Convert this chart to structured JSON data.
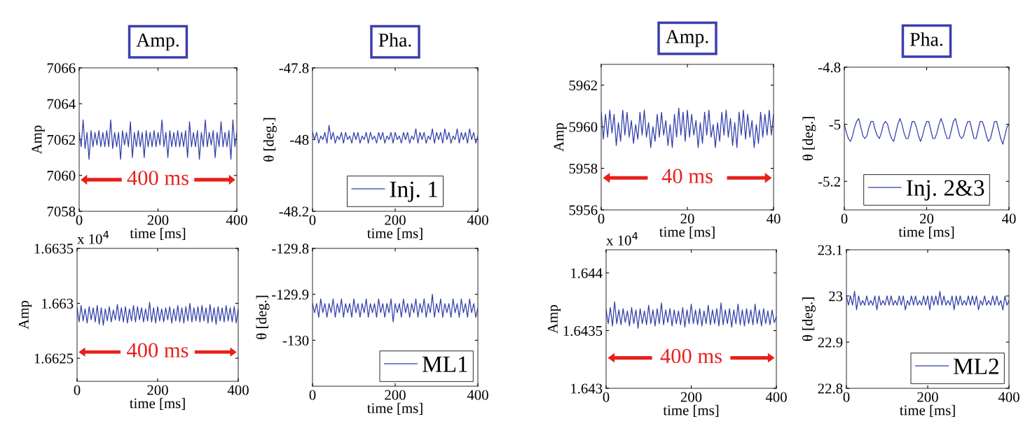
{
  "chart_data": [
    {
      "type": "line",
      "title": "Amp.",
      "xlabel": "time [ms]",
      "ylabel": "Amp",
      "xlim": [
        0,
        400
      ],
      "xticks": [
        0,
        200,
        400
      ],
      "ylim": [
        7058,
        7066
      ],
      "yticks": [
        7058,
        7060,
        7062,
        7064,
        7066
      ],
      "annotations": [
        "400 ms"
      ],
      "grid": false,
      "legend": false,
      "x": [
        0,
        5,
        10,
        15,
        20,
        25,
        30,
        35,
        40,
        45,
        50,
        55,
        60,
        65,
        70,
        75,
        80,
        85,
        90,
        95,
        100,
        105,
        110,
        115,
        120,
        125,
        130,
        135,
        140,
        145,
        150,
        155,
        160,
        165,
        170,
        175,
        180,
        185,
        190,
        195,
        200,
        205,
        210,
        215,
        220,
        225,
        230,
        235,
        240,
        245,
        250,
        255,
        260,
        265,
        270,
        275,
        280,
        285,
        290,
        295,
        300,
        305,
        310,
        315,
        320,
        325,
        330,
        335,
        340,
        345,
        350,
        355,
        360,
        365,
        370,
        375,
        380,
        385,
        390,
        395,
        400
      ],
      "series": [
        {
          "color": "#3240aa",
          "values": [
            7062.4,
            7061.6,
            7063.1,
            7061.5,
            7062.4,
            7060.9,
            7062.5,
            7061.6,
            7062.4,
            7061.7,
            7062.5,
            7061.6,
            7062.4,
            7061.6,
            7062.5,
            7061.6,
            7063.1,
            7061.5,
            7062.4,
            7061.6,
            7062.4,
            7060.9,
            7062.5,
            7061.7,
            7062.4,
            7061.6,
            7063.0,
            7061.0,
            7062.4,
            7061.6,
            7062.5,
            7061.6,
            7062.4,
            7061.0,
            7062.5,
            7061.6,
            7062.4,
            7061.6,
            7062.5,
            7061.6,
            7062.4,
            7061.7,
            7063.1,
            7061.6,
            7062.4,
            7061.0,
            7062.5,
            7061.6,
            7062.4,
            7061.6,
            7062.5,
            7061.6,
            7062.4,
            7061.6,
            7062.5,
            7061.0,
            7063.0,
            7061.6,
            7062.4,
            7061.6,
            7062.5,
            7060.9,
            7062.4,
            7061.6,
            7063.1,
            7061.6,
            7062.4,
            7061.7,
            7062.5,
            7061.0,
            7062.4,
            7061.6,
            7063.0,
            7061.6,
            7062.4,
            7061.6,
            7062.5,
            7060.9,
            7063.1,
            7061.6,
            7062.4
          ]
        }
      ]
    },
    {
      "type": "line",
      "title": "Pha.",
      "xlabel": "time [ms]",
      "ylabel": "θ [deg.]",
      "xlim": [
        0,
        400
      ],
      "xticks": [
        0,
        200,
        400
      ],
      "ylim": [
        -48.2,
        -47.8
      ],
      "yticks": [
        -48.2,
        -48,
        -47.8
      ],
      "grid": false,
      "legend": "bottom",
      "x": [
        0,
        5,
        10,
        15,
        20,
        25,
        30,
        35,
        40,
        45,
        50,
        55,
        60,
        65,
        70,
        75,
        80,
        85,
        90,
        95,
        100,
        105,
        110,
        115,
        120,
        125,
        130,
        135,
        140,
        145,
        150,
        155,
        160,
        165,
        170,
        175,
        180,
        185,
        190,
        195,
        200,
        205,
        210,
        215,
        220,
        225,
        230,
        235,
        240,
        245,
        250,
        255,
        260,
        265,
        270,
        275,
        280,
        285,
        290,
        295,
        300,
        305,
        310,
        315,
        320,
        325,
        330,
        335,
        340,
        345,
        350,
        355,
        360,
        365,
        370,
        375,
        380,
        385,
        390,
        395,
        400
      ],
      "series": [
        {
          "name": "Inj. 1",
          "color": "#3240aa",
          "values": [
            -47.98,
            -48.0,
            -47.98,
            -48.01,
            -47.99,
            -48.0,
            -47.98,
            -48.01,
            -47.96,
            -48.0,
            -47.98,
            -48.01,
            -47.99,
            -48.0,
            -47.98,
            -48.01,
            -47.98,
            -48.0,
            -47.99,
            -48.01,
            -47.98,
            -48.0,
            -47.98,
            -48.01,
            -47.99,
            -48.0,
            -47.98,
            -48.01,
            -47.98,
            -48.0,
            -47.99,
            -48.01,
            -47.98,
            -48.0,
            -47.98,
            -48.01,
            -47.99,
            -48.0,
            -47.98,
            -48.01,
            -47.98,
            -48.0,
            -47.99,
            -48.01,
            -47.98,
            -48.0,
            -47.98,
            -48.01,
            -47.99,
            -48.0,
            -47.97,
            -48.01,
            -47.98,
            -48.0,
            -47.98,
            -48.01,
            -47.99,
            -48.0,
            -47.97,
            -48.01,
            -47.98,
            -48.0,
            -47.98,
            -48.01,
            -47.97,
            -48.0,
            -47.98,
            -48.01,
            -47.99,
            -48.0,
            -47.97,
            -48.01,
            -47.98,
            -48.0,
            -47.98,
            -48.01,
            -47.97,
            -48.0,
            -47.98,
            -48.01,
            -47.99
          ]
        }
      ]
    },
    {
      "type": "line",
      "title": "Amp.",
      "xlabel": "time [ms]",
      "ylabel": "Amp",
      "xlim": [
        0,
        40
      ],
      "xticks": [
        0,
        20,
        40
      ],
      "ylim": [
        5956,
        5963
      ],
      "yticks": [
        5956,
        5958,
        5960,
        5962
      ],
      "annotations": [
        "40 ms"
      ],
      "grid": false,
      "legend": false,
      "x": [
        0,
        0.5,
        1,
        1.5,
        2,
        2.5,
        3,
        3.5,
        4,
        4.5,
        5,
        5.5,
        6,
        6.5,
        7,
        7.5,
        8,
        8.5,
        9,
        9.5,
        10,
        10.5,
        11,
        11.5,
        12,
        12.5,
        13,
        13.5,
        14,
        14.5,
        15,
        15.5,
        16,
        16.5,
        17,
        17.5,
        18,
        18.5,
        19,
        19.5,
        20,
        20.5,
        21,
        21.5,
        22,
        22.5,
        23,
        23.5,
        24,
        24.5,
        25,
        25.5,
        26,
        26.5,
        27,
        27.5,
        28,
        28.5,
        29,
        29.5,
        30,
        30.5,
        31,
        31.5,
        32,
        32.5,
        33,
        33.5,
        34,
        34.5,
        35,
        35.5,
        36,
        36.5,
        37,
        37.5,
        38,
        38.5,
        39,
        39.5,
        40
      ],
      "series": [
        {
          "color": "#3240aa",
          "values": [
            5960.7,
            5959.4,
            5960.6,
            5959.5,
            5960.8,
            5959.7,
            5960.6,
            5959.1,
            5960.2,
            5959.3,
            5960.8,
            5959.6,
            5960.7,
            5959.5,
            5960.3,
            5959.2,
            5960.1,
            5959.4,
            5960.7,
            5959.6,
            5960.8,
            5959.5,
            5960.2,
            5959.0,
            5960.0,
            5959.3,
            5960.6,
            5959.5,
            5960.7,
            5959.6,
            5960.3,
            5959.1,
            5960.1,
            5959.0,
            5960.6,
            5959.5,
            5960.9,
            5959.6,
            5960.7,
            5959.3,
            5960.8,
            5959.5,
            5960.6,
            5959.6,
            5960.3,
            5959.0,
            5960.2,
            5959.2,
            5960.7,
            5959.6,
            5960.8,
            5959.5,
            5960.1,
            5959.0,
            5960.2,
            5959.3,
            5960.7,
            5959.6,
            5960.8,
            5959.5,
            5960.4,
            5959.1,
            5960.2,
            5959.0,
            5960.7,
            5959.6,
            5960.8,
            5959.4,
            5960.6,
            5959.5,
            5960.3,
            5959.0,
            5960.1,
            5959.2,
            5960.7,
            5959.5,
            5960.6,
            5959.6,
            5960.8,
            5959.6,
            5960.6
          ]
        }
      ]
    },
    {
      "type": "line",
      "title": "Pha.",
      "xlabel": "time [ms]",
      "ylabel": "θ [deg.]",
      "xlim": [
        0,
        40
      ],
      "xticks": [
        0,
        20,
        40
      ],
      "ylim": [
        -5.3,
        -4.8
      ],
      "yticks": [
        -5.2,
        -5,
        -4.8
      ],
      "grid": false,
      "legend": "bottom",
      "x": [
        0,
        0.5,
        1,
        1.5,
        2,
        2.5,
        3,
        3.5,
        4,
        4.5,
        5,
        5.5,
        6,
        6.5,
        7,
        7.5,
        8,
        8.5,
        9,
        9.5,
        10,
        10.5,
        11,
        11.5,
        12,
        12.5,
        13,
        13.5,
        14,
        14.5,
        15,
        15.5,
        16,
        16.5,
        17,
        17.5,
        18,
        18.5,
        19,
        19.5,
        20,
        20.5,
        21,
        21.5,
        22,
        22.5,
        23,
        23.5,
        24,
        24.5,
        25,
        25.5,
        26,
        26.5,
        27,
        27.5,
        28,
        28.5,
        29,
        29.5,
        30,
        30.5,
        31,
        31.5,
        32,
        32.5,
        33,
        33.5,
        34,
        34.5,
        35,
        35.5,
        36,
        36.5,
        37,
        37.5,
        38,
        38.5,
        39,
        39.5,
        40
      ],
      "series": [
        {
          "name": "Inj. 2&3",
          "color": "#3240aa",
          "values": [
            -5.0,
            -5.03,
            -5.05,
            -5.06,
            -5.04,
            -5.01,
            -4.99,
            -4.98,
            -5.01,
            -5.04,
            -5.05,
            -5.04,
            -5.01,
            -4.99,
            -4.99,
            -5.02,
            -5.04,
            -5.05,
            -5.03,
            -5.0,
            -4.99,
            -5.0,
            -5.03,
            -5.05,
            -5.06,
            -5.03,
            -5.0,
            -4.98,
            -5.0,
            -5.03,
            -5.05,
            -5.05,
            -5.02,
            -4.99,
            -4.99,
            -5.01,
            -5.04,
            -5.06,
            -5.04,
            -5.01,
            -4.99,
            -4.99,
            -5.02,
            -5.05,
            -5.05,
            -5.03,
            -5.0,
            -4.98,
            -5.0,
            -5.03,
            -5.05,
            -5.05,
            -5.02,
            -4.99,
            -4.98,
            -5.01,
            -5.04,
            -5.05,
            -5.04,
            -5.01,
            -4.99,
            -4.99,
            -5.02,
            -5.05,
            -5.05,
            -5.02,
            -4.99,
            -4.99,
            -5.01,
            -5.04,
            -5.06,
            -5.05,
            -5.02,
            -4.99,
            -4.99,
            -5.02,
            -5.05,
            -5.07,
            -5.04,
            -5.01,
            -5.0
          ]
        }
      ]
    },
    {
      "type": "line",
      "xlabel": "time [ms]",
      "ylabel": "Amp",
      "xlim": [
        0,
        400
      ],
      "xticks": [
        0,
        200,
        400
      ],
      "ylim": [
        1.66229,
        1.6635
      ],
      "yticks": [
        1.6625,
        1.663,
        1.6635
      ],
      "annotations": [
        "x 10$^{4}$",
        "400 ms"
      ],
      "grid": false,
      "legend": false,
      "x": [
        0,
        5,
        10,
        15,
        20,
        25,
        30,
        35,
        40,
        45,
        50,
        55,
        60,
        65,
        70,
        75,
        80,
        85,
        90,
        95,
        100,
        105,
        110,
        115,
        120,
        125,
        130,
        135,
        140,
        145,
        150,
        155,
        160,
        165,
        170,
        175,
        180,
        185,
        190,
        195,
        200,
        205,
        210,
        215,
        220,
        225,
        230,
        235,
        240,
        245,
        250,
        255,
        260,
        265,
        270,
        275,
        280,
        285,
        290,
        295,
        300,
        305,
        310,
        315,
        320,
        325,
        330,
        335,
        340,
        345,
        350,
        355,
        360,
        365,
        370,
        375,
        380,
        385,
        390,
        395,
        400
      ],
      "series": [
        {
          "color": "#3240aa",
          "values": [
            1.66296,
            1.66283,
            1.66298,
            1.66284,
            1.66295,
            1.66282,
            1.66297,
            1.66285,
            1.66296,
            1.66283,
            1.66298,
            1.66281,
            1.66296,
            1.6628,
            1.66295,
            1.66284,
            1.66297,
            1.66283,
            1.66294,
            1.66285,
            1.66299,
            1.66284,
            1.66296,
            1.66283,
            1.66297,
            1.66282,
            1.66295,
            1.66284,
            1.66298,
            1.66283,
            1.66297,
            1.66285,
            1.66296,
            1.66283,
            1.66295,
            1.66284,
            1.66301,
            1.66283,
            1.66296,
            1.66282,
            1.66297,
            1.66284,
            1.66295,
            1.66283,
            1.66296,
            1.66285,
            1.66297,
            1.66282,
            1.66295,
            1.66284,
            1.66298,
            1.66283,
            1.66296,
            1.66282,
            1.66297,
            1.66284,
            1.663,
            1.66283,
            1.66296,
            1.66284,
            1.66297,
            1.66283,
            1.66298,
            1.66284,
            1.66296,
            1.66282,
            1.66299,
            1.66283,
            1.66296,
            1.66281,
            1.66297,
            1.66284,
            1.66296,
            1.66283,
            1.66298,
            1.66284,
            1.66296,
            1.66283,
            1.66297,
            1.66282,
            1.66295
          ]
        }
      ]
    },
    {
      "type": "line",
      "xlabel": "time [ms]",
      "ylabel": "θ [deg.]",
      "xlim": [
        0,
        400
      ],
      "xticks": [
        0,
        200,
        400
      ],
      "ylim": [
        -130.1,
        -129.8
      ],
      "yticks": [
        -130,
        -129.9,
        -129.8
      ],
      "grid": false,
      "legend": "bottom right",
      "x": [
        0,
        5,
        10,
        15,
        20,
        25,
        30,
        35,
        40,
        45,
        50,
        55,
        60,
        65,
        70,
        75,
        80,
        85,
        90,
        95,
        100,
        105,
        110,
        115,
        120,
        125,
        130,
        135,
        140,
        145,
        150,
        155,
        160,
        165,
        170,
        175,
        180,
        185,
        190,
        195,
        200,
        205,
        210,
        215,
        220,
        225,
        230,
        235,
        240,
        245,
        250,
        255,
        260,
        265,
        270,
        275,
        280,
        285,
        290,
        295,
        300,
        305,
        310,
        315,
        320,
        325,
        330,
        335,
        340,
        345,
        350,
        355,
        360,
        365,
        370,
        375,
        380,
        385,
        390,
        395,
        400
      ],
      "series": [
        {
          "name": "ML1",
          "color": "#3240aa",
          "values": [
            -129.92,
            -129.94,
            -129.92,
            -129.95,
            -129.91,
            -129.94,
            -129.92,
            -129.95,
            -129.92,
            -129.94,
            -129.91,
            -129.95,
            -129.92,
            -129.94,
            -129.91,
            -129.95,
            -129.92,
            -129.94,
            -129.92,
            -129.95,
            -129.91,
            -129.94,
            -129.92,
            -129.95,
            -129.92,
            -129.94,
            -129.91,
            -129.95,
            -129.92,
            -129.94,
            -129.92,
            -129.95,
            -129.91,
            -129.94,
            -129.92,
            -129.95,
            -129.92,
            -129.94,
            -129.91,
            -129.96,
            -129.92,
            -129.94,
            -129.92,
            -129.95,
            -129.91,
            -129.94,
            -129.92,
            -129.95,
            -129.92,
            -129.94,
            -129.91,
            -129.95,
            -129.92,
            -129.94,
            -129.91,
            -129.95,
            -129.92,
            -129.94,
            -129.9,
            -129.95,
            -129.92,
            -129.94,
            -129.91,
            -129.95,
            -129.92,
            -129.94,
            -129.92,
            -129.95,
            -129.91,
            -129.94,
            -129.92,
            -129.95,
            -129.91,
            -129.94,
            -129.92,
            -129.95,
            -129.91,
            -129.94,
            -129.92,
            -129.95,
            -129.93
          ]
        }
      ]
    },
    {
      "type": "line",
      "xlabel": "time [ms]",
      "ylabel": "Amp",
      "xlim": [
        0,
        400
      ],
      "xticks": [
        0,
        200,
        400
      ],
      "ylim": [
        1.643,
        1.6442
      ],
      "yticks": [
        1.643,
        1.6435,
        1.644
      ],
      "annotations": [
        "x 10$^{4}$",
        "400 ms"
      ],
      "grid": false,
      "legend": false,
      "x": [
        0,
        5,
        10,
        15,
        20,
        25,
        30,
        35,
        40,
        45,
        50,
        55,
        60,
        65,
        70,
        75,
        80,
        85,
        90,
        95,
        100,
        105,
        110,
        115,
        120,
        125,
        130,
        135,
        140,
        145,
        150,
        155,
        160,
        165,
        170,
        175,
        180,
        185,
        190,
        195,
        200,
        205,
        210,
        215,
        220,
        225,
        230,
        235,
        240,
        245,
        250,
        255,
        260,
        265,
        270,
        275,
        280,
        285,
        290,
        295,
        300,
        305,
        310,
        315,
        320,
        325,
        330,
        335,
        340,
        345,
        350,
        355,
        360,
        365,
        370,
        375,
        380,
        385,
        390,
        395,
        400
      ],
      "series": [
        {
          "color": "#3240aa",
          "values": [
            1.64368,
            1.64356,
            1.6437,
            1.64354,
            1.64375,
            1.64356,
            1.64368,
            1.64355,
            1.64369,
            1.64357,
            1.64367,
            1.64354,
            1.6437,
            1.64356,
            1.64368,
            1.64352,
            1.64369,
            1.64356,
            1.64367,
            1.64355,
            1.64372,
            1.64356,
            1.64368,
            1.64354,
            1.64369,
            1.64356,
            1.64374,
            1.64355,
            1.64368,
            1.64357,
            1.64369,
            1.64354,
            1.64368,
            1.64356,
            1.64367,
            1.64355,
            1.6437,
            1.64353,
            1.64368,
            1.64356,
            1.64373,
            1.64356,
            1.64368,
            1.64355,
            1.64369,
            1.64354,
            1.64367,
            1.64356,
            1.64372,
            1.64355,
            1.64368,
            1.64356,
            1.64369,
            1.64354,
            1.64374,
            1.64355,
            1.64368,
            1.64356,
            1.64369,
            1.64353,
            1.64368,
            1.64356,
            1.64373,
            1.64355,
            1.64368,
            1.64354,
            1.64369,
            1.64356,
            1.64368,
            1.64355,
            1.64373,
            1.64356,
            1.64368,
            1.64354,
            1.64369,
            1.64356,
            1.64367,
            1.64355,
            1.64368,
            1.64357,
            1.64362
          ]
        }
      ]
    },
    {
      "type": "line",
      "xlabel": "time [ms]",
      "ylabel": "θ [deg.]",
      "xlim": [
        0,
        400
      ],
      "xticks": [
        0,
        200,
        400
      ],
      "ylim": [
        22.8,
        23.1
      ],
      "yticks": [
        22.8,
        22.9,
        23,
        23.1
      ],
      "grid": false,
      "legend": "bottom right",
      "x": [
        0,
        5,
        10,
        15,
        20,
        25,
        30,
        35,
        40,
        45,
        50,
        55,
        60,
        65,
        70,
        75,
        80,
        85,
        90,
        95,
        100,
        105,
        110,
        115,
        120,
        125,
        130,
        135,
        140,
        145,
        150,
        155,
        160,
        165,
        170,
        175,
        180,
        185,
        190,
        195,
        200,
        205,
        210,
        215,
        220,
        225,
        230,
        235,
        240,
        245,
        250,
        255,
        260,
        265,
        270,
        275,
        280,
        285,
        290,
        295,
        300,
        305,
        310,
        315,
        320,
        325,
        330,
        335,
        340,
        345,
        350,
        355,
        360,
        365,
        370,
        375,
        380,
        385,
        390,
        395,
        400
      ],
      "series": [
        {
          "name": "ML2",
          "color": "#3240aa",
          "values": [
            23.0,
            22.98,
            23.0,
            22.98,
            23.01,
            22.97,
            23.0,
            22.98,
            22.99,
            22.98,
            23.0,
            22.98,
            22.99,
            22.98,
            23.0,
            22.97,
            23.0,
            22.98,
            22.99,
            22.98,
            23.0,
            22.98,
            23.0,
            22.98,
            22.99,
            22.98,
            23.0,
            22.98,
            23.0,
            22.97,
            22.99,
            22.98,
            23.0,
            22.98,
            23.0,
            22.98,
            22.99,
            22.98,
            23.0,
            22.98,
            23.0,
            22.97,
            23.0,
            22.98,
            23.0,
            22.98,
            23.01,
            22.98,
            23.0,
            22.98,
            22.99,
            22.98,
            23.0,
            22.97,
            23.0,
            22.98,
            23.0,
            22.98,
            22.99,
            22.98,
            23.0,
            22.98,
            23.0,
            22.98,
            23.0,
            22.97,
            22.99,
            22.98,
            23.0,
            22.98,
            22.99,
            22.98,
            23.0,
            22.98,
            23.0,
            22.98,
            22.99,
            22.97,
            23.0,
            22.98,
            22.99
          ]
        }
      ]
    }
  ]
}
